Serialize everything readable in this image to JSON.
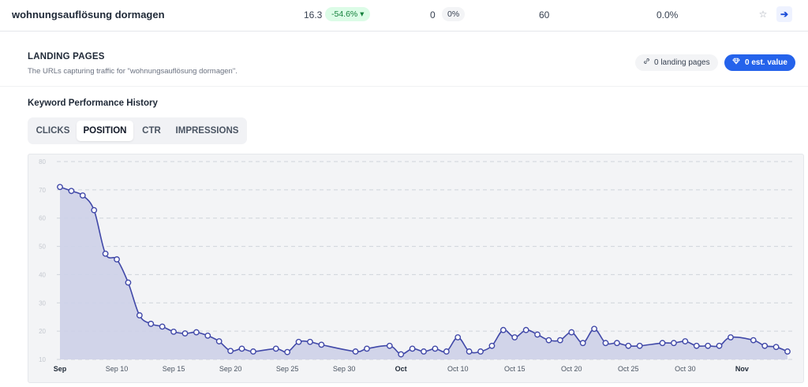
{
  "keyword_row": {
    "keyword": "wohnungsauflösung dormagen",
    "position": "16.3",
    "position_change": "-54.6% ▾",
    "clicks": "0",
    "ctr": "0%",
    "volume": "60",
    "share": "0.0%",
    "star_icon": "star-icon",
    "go_icon": "arrow-right-icon"
  },
  "landing_pages": {
    "title": "LANDING PAGES",
    "subtitle": "The URLs capturing traffic for \"wohnungsauflösung dormagen\".",
    "pages_count_label": "0 landing pages",
    "est_value_label": "0 est. value"
  },
  "history": {
    "title": "Keyword Performance History",
    "tabs": [
      "CLICKS",
      "POSITION",
      "CTR",
      "IMPRESSIONS"
    ],
    "active_tab": "POSITION"
  },
  "colors": {
    "line": "#4048a8",
    "area": "#cdd0e8",
    "accent": "#2563eb"
  },
  "chart_data": {
    "type": "area",
    "x_start": "2023-09-05",
    "x_end": "2023-11-08",
    "x_ticks": [
      {
        "date": "2023-09-05",
        "label": "Sep",
        "bold": true
      },
      {
        "date": "2023-09-10",
        "label": "Sep 10",
        "bold": false
      },
      {
        "date": "2023-09-15",
        "label": "Sep 15",
        "bold": false
      },
      {
        "date": "2023-09-20",
        "label": "Sep 20",
        "bold": false
      },
      {
        "date": "2023-09-25",
        "label": "Sep 25",
        "bold": false
      },
      {
        "date": "2023-09-30",
        "label": "Sep 30",
        "bold": false
      },
      {
        "date": "2023-10-05",
        "label": "Oct",
        "bold": true
      },
      {
        "date": "2023-10-10",
        "label": "Oct 10",
        "bold": false
      },
      {
        "date": "2023-10-15",
        "label": "Oct 15",
        "bold": false
      },
      {
        "date": "2023-10-20",
        "label": "Oct 20",
        "bold": false
      },
      {
        "date": "2023-10-25",
        "label": "Oct 25",
        "bold": false
      },
      {
        "date": "2023-10-30",
        "label": "Oct 30",
        "bold": false
      },
      {
        "date": "2023-11-04",
        "label": "Nov",
        "bold": true
      }
    ],
    "y_ticks": [
      10,
      20,
      30,
      40,
      50,
      60,
      70,
      80
    ],
    "ylim": [
      10,
      80
    ],
    "grid": true,
    "series": [
      {
        "points": [
          [
            "2023-09-05",
            71
          ],
          [
            "2023-09-06",
            69.6
          ],
          [
            "2023-09-07",
            68
          ],
          [
            "2023-09-08",
            62.8
          ],
          [
            "2023-09-09",
            47.4
          ],
          [
            "2023-09-10",
            45.4
          ],
          [
            "2023-09-11",
            37.2
          ],
          [
            "2023-09-12",
            25.6
          ],
          [
            "2023-09-13",
            22.6
          ],
          [
            "2023-09-14",
            21.6
          ],
          [
            "2023-09-15",
            19.8
          ],
          [
            "2023-09-16",
            19.2
          ],
          [
            "2023-09-17",
            19.6
          ],
          [
            "2023-09-18",
            18.4
          ],
          [
            "2023-09-19",
            16.4
          ],
          [
            "2023-09-20",
            13
          ],
          [
            "2023-09-21",
            13.8
          ],
          [
            "2023-09-22",
            12.8
          ],
          [
            "2023-09-24",
            13.8
          ],
          [
            "2023-09-25",
            12.6
          ],
          [
            "2023-09-26",
            16.2
          ],
          [
            "2023-09-27",
            16.2
          ],
          [
            "2023-09-28",
            15.2
          ],
          [
            "2023-10-01",
            12.8
          ],
          [
            "2023-10-02",
            13.8
          ],
          [
            "2023-10-04",
            14.8
          ],
          [
            "2023-10-05",
            11.8
          ],
          [
            "2023-10-06",
            13.8
          ],
          [
            "2023-10-07",
            12.8
          ],
          [
            "2023-10-08",
            13.8
          ],
          [
            "2023-10-09",
            12.8
          ],
          [
            "2023-10-10",
            17.8
          ],
          [
            "2023-10-11",
            12.8
          ],
          [
            "2023-10-12",
            12.8
          ],
          [
            "2023-10-13",
            14.8
          ],
          [
            "2023-10-14",
            20.4
          ],
          [
            "2023-10-15",
            17.8
          ],
          [
            "2023-10-16",
            20.4
          ],
          [
            "2023-10-17",
            18.8
          ],
          [
            "2023-10-18",
            16.8
          ],
          [
            "2023-10-19",
            16.8
          ],
          [
            "2023-10-20",
            19.6
          ],
          [
            "2023-10-21",
            15.8
          ],
          [
            "2023-10-22",
            20.8
          ],
          [
            "2023-10-23",
            15.8
          ],
          [
            "2023-10-24",
            15.8
          ],
          [
            "2023-10-25",
            14.8
          ],
          [
            "2023-10-26",
            14.8
          ],
          [
            "2023-10-28",
            15.8
          ],
          [
            "2023-10-29",
            15.8
          ],
          [
            "2023-10-30",
            16.4
          ],
          [
            "2023-10-31",
            14.8
          ],
          [
            "2023-11-01",
            14.8
          ],
          [
            "2023-11-02",
            14.8
          ],
          [
            "2023-11-03",
            17.8
          ],
          [
            "2023-11-05",
            16.8
          ],
          [
            "2023-11-06",
            14.8
          ],
          [
            "2023-11-07",
            14.4
          ],
          [
            "2023-11-08",
            12.8
          ]
        ]
      }
    ]
  }
}
